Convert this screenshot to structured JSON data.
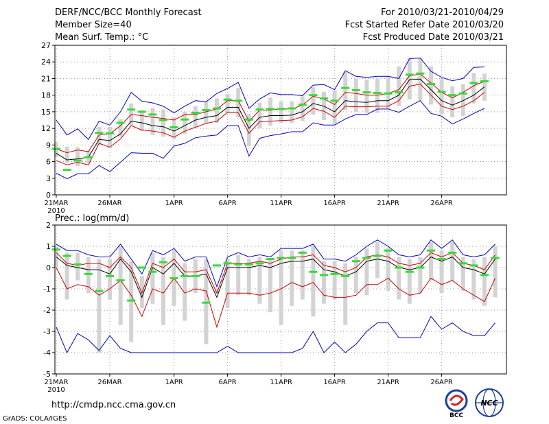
{
  "header": {
    "title": "DERF/NCC/BCC Monthly Forecast",
    "member_size": "Member Size=40",
    "variable_top": "Mean Surf. Temp.: °C",
    "period": "For 2010/03/21-2010/04/29",
    "fcst_started": "Fcst Started Refer Date 2010/03/20",
    "fcst_produced": "Fcst Produced Date 2010/03/21"
  },
  "footer": {
    "url": "http://cmdp.ncc.cma.gov.cn",
    "grads": "GrADS: COLA/IGES"
  },
  "logos": {
    "bcc": "BCC",
    "ncc": "NCC"
  },
  "colors": {
    "mean": "#000000",
    "spread": "#cc0000",
    "extreme": "#0000bb",
    "obs": "#33dd33",
    "box": "#d3d3d3"
  },
  "chart_data": [
    {
      "type": "line",
      "title": "Mean Surf. Temp.: °C",
      "x_tick_labels": [
        "21MAR",
        "26MAR",
        "1APR",
        "6APR",
        "11APR",
        "16APR",
        "21APR",
        "26APR"
      ],
      "x_year_label": "2010",
      "x_tick_days": [
        0,
        5,
        11,
        16,
        21,
        26,
        31,
        36
      ],
      "ylim": [
        0,
        27
      ],
      "yticks": [
        0,
        3,
        6,
        9,
        12,
        15,
        18,
        21,
        24,
        27
      ],
      "grid": true,
      "series": [
        {
          "name": "ensemble mean",
          "values": [
            7.5,
            6.3,
            6.5,
            6.8,
            10.0,
            9.8,
            11.0,
            13.3,
            13.0,
            12.5,
            12.3,
            11.5,
            12.5,
            13.5,
            14.0,
            14.3,
            15.8,
            15.8,
            12.0,
            14.0,
            14.3,
            14.3,
            14.4,
            15.0,
            16.5,
            16.0,
            15.0,
            17.0,
            16.8,
            16.7,
            17.0,
            17.0,
            18.0,
            20.8,
            20.9,
            19.0,
            17.0,
            16.2,
            17.0,
            18.0,
            19.5
          ]
        },
        {
          "name": "mean + 1 std",
          "values": [
            8.3,
            7.6,
            8.1,
            7.8,
            10.8,
            11.0,
            12.5,
            14.5,
            14.3,
            14.0,
            13.8,
            13.5,
            14.5,
            14.5,
            15.0,
            15.5,
            17.0,
            17.0,
            13.3,
            15.3,
            15.3,
            15.5,
            15.5,
            16.2,
            17.8,
            17.3,
            16.3,
            18.5,
            18.3,
            18.0,
            18.0,
            18.3,
            19.0,
            21.5,
            21.8,
            20.2,
            18.5,
            17.5,
            18.5,
            19.7,
            20.5
          ]
        },
        {
          "name": "mean - 1 std",
          "values": [
            6.2,
            5.4,
            5.9,
            5.4,
            9.3,
            8.6,
            10.1,
            12.5,
            11.7,
            11.5,
            11.2,
            10.4,
            11.5,
            12.2,
            12.9,
            13.3,
            14.9,
            14.8,
            11.1,
            13.2,
            13.3,
            13.4,
            13.5,
            14.1,
            15.6,
            15.1,
            14.0,
            16.0,
            15.9,
            15.9,
            16.0,
            16.0,
            17.0,
            19.6,
            20.0,
            18.0,
            16.0,
            15.4,
            16.0,
            17.0,
            18.5
          ]
        },
        {
          "name": "ensemble max",
          "values": [
            13.5,
            10.8,
            11.9,
            10.0,
            13.3,
            12.6,
            15.0,
            18.5,
            16.9,
            16.6,
            16.0,
            14.8,
            16.0,
            17.0,
            16.8,
            18.3,
            19.2,
            20.3,
            15.6,
            17.3,
            18.4,
            18.1,
            18.1,
            17.9,
            19.8,
            19.9,
            19.0,
            22.4,
            21.4,
            21.2,
            21.4,
            21.4,
            21.0,
            24.6,
            24.7,
            22.3,
            21.2,
            20.6,
            21.0,
            23.0,
            23.1
          ]
        },
        {
          "name": "ensemble min",
          "values": [
            3.9,
            2.9,
            3.8,
            3.8,
            5.3,
            4.2,
            5.9,
            7.6,
            7.5,
            7.5,
            6.6,
            8.8,
            9.3,
            10.3,
            10.6,
            10.8,
            12.5,
            12.5,
            7.0,
            10.2,
            10.7,
            11.0,
            11.4,
            11.4,
            13.0,
            12.6,
            12.6,
            13.7,
            14.5,
            14.5,
            15.5,
            15.5,
            14.9,
            16.0,
            17.0,
            14.7,
            14.2,
            12.8,
            13.7,
            14.7,
            15.6
          ]
        },
        {
          "name": "observed",
          "values": [
            8.3,
            4.5,
            6.2,
            6.8,
            11.2,
            11.1,
            13.0,
            15.4,
            15.0,
            14.5,
            13.5,
            12.2,
            13.6,
            14.8,
            15.3,
            15.6,
            17.2,
            17.0,
            13.6,
            15.4,
            15.5,
            15.5,
            15.6,
            16.3,
            18.0,
            17.4,
            17.0,
            19.3,
            18.9,
            18.5,
            18.4,
            18.3,
            18.5,
            21.7,
            21.9,
            20.0,
            18.6,
            18.0,
            18.3,
            20.2,
            20.5
          ]
        }
      ],
      "box_low": [
        6.8,
        5.8,
        5.2,
        5.7,
        9.0,
        8.5,
        10.5,
        12.6,
        11.5,
        10.8,
        10.5,
        10.0,
        11.0,
        12.2,
        12.8,
        13.0,
        14.8,
        14.0,
        8.8,
        12.0,
        12.5,
        13.0,
        13.0,
        13.3,
        14.5,
        13.5,
        12.7,
        15.3,
        15.0,
        14.8,
        14.8,
        15.6,
        16.0,
        17.2,
        17.0,
        16.3,
        14.5,
        14.0,
        14.2,
        16.5,
        17.0
      ],
      "box_high": [
        9.5,
        8.7,
        8.6,
        8.0,
        12.3,
        12.3,
        13.7,
        16.5,
        15.3,
        15.7,
        15.4,
        14.0,
        15.0,
        16.0,
        16.9,
        17.4,
        18.2,
        19.3,
        14.6,
        16.6,
        17.6,
        16.9,
        16.9,
        17.8,
        19.4,
        18.6,
        18.9,
        22.2,
        21.0,
        20.8,
        21.0,
        21.5,
        23.2,
        24.6,
        24.7,
        23.2,
        20.9,
        19.6,
        20.0,
        22.0,
        21.9
      ]
    },
    {
      "type": "line",
      "title": "Prec.: log(mm/d)",
      "x_tick_labels": [
        "21MAR",
        "26MAR",
        "1APR",
        "6APR",
        "11APR",
        "16APR",
        "21APR",
        "26APR"
      ],
      "x_year_label": "2010",
      "x_tick_days": [
        0,
        5,
        11,
        16,
        21,
        26,
        31,
        36
      ],
      "ylim": [
        -5,
        2
      ],
      "yticks": [
        -5,
        -4,
        -3,
        -2,
        -1,
        0,
        1,
        2
      ],
      "grid": true,
      "series": [
        {
          "name": "ensemble mean",
          "values": [
            0.5,
            0.1,
            0.0,
            -0.1,
            -0.1,
            -0.3,
            0.4,
            -0.2,
            -1.4,
            0.0,
            -0.3,
            0.2,
            -0.4,
            -0.4,
            -0.3,
            -1.4,
            0.0,
            0.0,
            0.0,
            0.1,
            0.0,
            0.2,
            0.3,
            0.3,
            0.4,
            -0.1,
            -0.2,
            -0.4,
            -0.2,
            0.3,
            0.4,
            0.3,
            0.0,
            -0.1,
            0.0,
            0.5,
            0.3,
            0.5,
            0.0,
            -0.1,
            -0.3,
            0.4
          ]
        },
        {
          "name": "mean + 1 std",
          "values": [
            0.7,
            0.2,
            0.1,
            0.2,
            0.2,
            0.0,
            0.5,
            0.0,
            -1.2,
            0.2,
            0.0,
            0.4,
            -0.2,
            -0.2,
            -0.1,
            -1.2,
            0.2,
            0.2,
            0.2,
            0.3,
            0.2,
            0.4,
            0.5,
            0.5,
            0.6,
            0.1,
            0.0,
            -0.2,
            0.0,
            0.5,
            0.6,
            0.5,
            0.2,
            0.1,
            0.2,
            0.7,
            0.5,
            0.7,
            0.2,
            0.1,
            -0.1,
            0.6
          ]
        },
        {
          "name": "mean - 1 std",
          "values": [
            0.0,
            -1.0,
            -0.8,
            -0.9,
            -1.3,
            -1.0,
            -0.6,
            -1.3,
            -2.3,
            -1.0,
            -1.2,
            -0.5,
            -1.2,
            -1.0,
            -1.1,
            -2.8,
            -1.2,
            -1.2,
            -1.2,
            -1.3,
            -1.2,
            -1.0,
            -0.7,
            -0.9,
            -0.7,
            -1.3,
            -1.4,
            -1.4,
            -1.3,
            -0.8,
            -0.8,
            -0.5,
            -1.0,
            -1.3,
            -1.2,
            -0.5,
            -0.8,
            -0.6,
            -1.0,
            -1.3,
            -1.6,
            -0.5
          ]
        },
        {
          "name": "ensemble max",
          "values": [
            1.1,
            0.8,
            0.8,
            0.6,
            0.5,
            0.5,
            1.1,
            0.4,
            -0.3,
            0.8,
            0.6,
            0.9,
            0.3,
            0.5,
            0.5,
            -0.9,
            0.5,
            0.7,
            0.5,
            0.6,
            0.5,
            0.9,
            0.9,
            0.9,
            1.1,
            0.4,
            0.4,
            0.3,
            0.6,
            1.0,
            1.3,
            1.0,
            0.6,
            0.5,
            0.6,
            1.3,
            0.9,
            1.3,
            0.6,
            0.5,
            0.6,
            1.1
          ]
        },
        {
          "name": "ensemble min",
          "values": [
            -2.8,
            -4.0,
            -3.1,
            -3.4,
            -3.9,
            -3.2,
            -3.8,
            -4.0,
            -4.0,
            -4.0,
            -4.0,
            -4.0,
            -4.0,
            -4.0,
            -4.0,
            -4.0,
            -3.7,
            -4.0,
            -4.0,
            -4.0,
            -4.0,
            -4.0,
            -4.0,
            -3.8,
            -3.0,
            -4.0,
            -3.5,
            -4.0,
            -3.6,
            -3.0,
            -2.6,
            -2.6,
            -3.3,
            -3.3,
            -3.3,
            -2.3,
            -2.9,
            -2.6,
            -3.0,
            -3.2,
            -3.2,
            -2.6
          ]
        },
        {
          "name": "observed",
          "values": [
            0.85,
            0.55,
            0.15,
            -0.3,
            -1.1,
            -0.4,
            -0.6,
            -1.55,
            0.0,
            -0.2,
            0.25,
            -0.5,
            -0.4,
            -0.4,
            -1.65,
            0.1,
            0.2,
            0.15,
            0.15,
            0.2,
            0.4,
            0.45,
            0.45,
            0.7,
            -0.2,
            -0.35,
            -0.3,
            -0.4,
            0.3,
            0.45,
            0.55,
            0.8,
            0.0,
            -0.2,
            0.0,
            0.8,
            0.4,
            0.7,
            0.2,
            0.1,
            -0.35,
            0.45
          ]
        }
      ],
      "box_low": [
        0.0,
        -1.5,
        -0.6,
        -1.2,
        -4.0,
        -1.5,
        -2.7,
        -3.5,
        -1.9,
        -1.7,
        -2.7,
        -1.8,
        -2.5,
        -1.2,
        -3.6,
        -1.2,
        -1.9,
        -1.3,
        -1.3,
        -1.7,
        -2.1,
        -2.7,
        -1.8,
        -1.5,
        -2.3,
        -1.7,
        -1.5,
        -2.7,
        -1.2,
        -1.3,
        -0.5,
        -1.1,
        -1.5,
        -1.7,
        -1.2,
        -0.6,
        -1.2,
        -0.6,
        -1.1,
        -1.5,
        -1.8,
        -1.4
      ],
      "box_high": [
        1.0,
        0.7,
        0.7,
        0.5,
        0.4,
        0.4,
        1.0,
        0.3,
        -0.4,
        0.7,
        0.5,
        0.8,
        0.2,
        0.4,
        0.4,
        -1.0,
        0.4,
        0.6,
        0.4,
        0.5,
        0.4,
        0.8,
        0.8,
        0.8,
        1.0,
        0.3,
        0.3,
        0.2,
        0.5,
        0.9,
        1.2,
        0.9,
        0.5,
        0.4,
        0.5,
        1.2,
        0.8,
        1.2,
        0.5,
        0.4,
        0.5,
        1.0
      ]
    }
  ]
}
